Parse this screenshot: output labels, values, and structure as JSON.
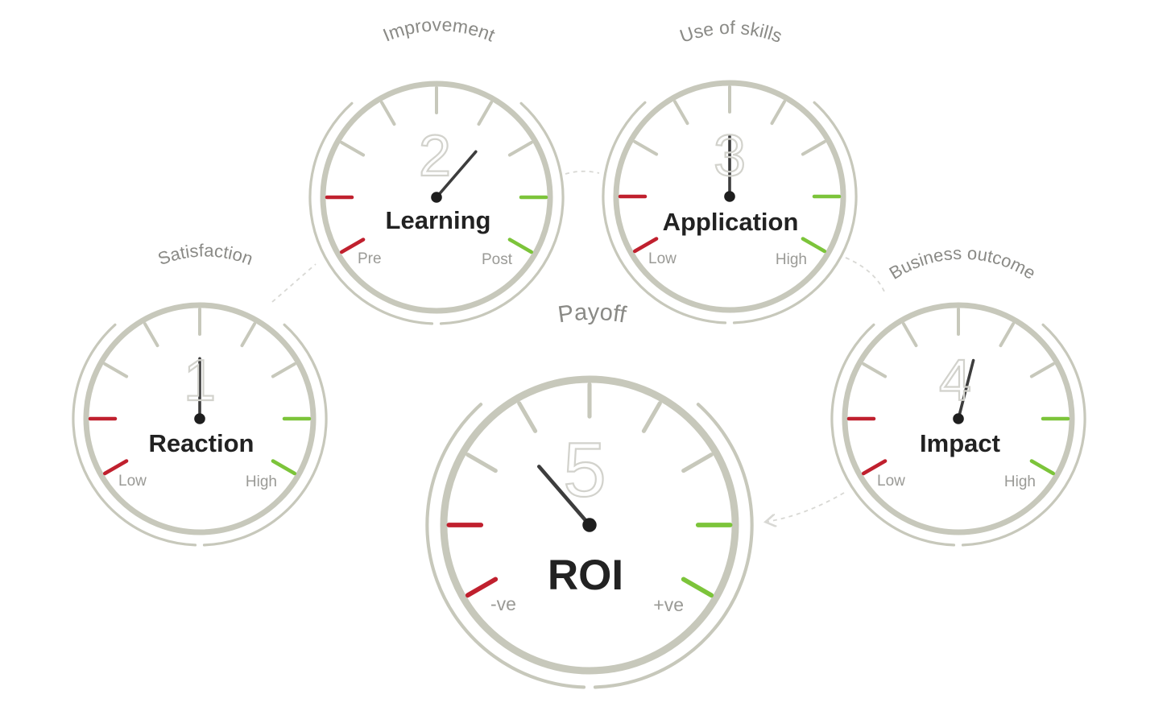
{
  "colors": {
    "ring": "#c7c8bb",
    "tick": "#c7c8bb",
    "low_tick": "#c0202e",
    "high_tick": "#7cc43a",
    "needle": "#3d3d3d",
    "hub": "#1e1e1e",
    "connector": "#d8d8d4",
    "level_glyph": "#d2d2cc"
  },
  "gauges": [
    {
      "level": "1",
      "name": "Reaction",
      "arc_label": "Satisfaction",
      "low_label": "Low",
      "high_label": "High",
      "reading": 0.5
    },
    {
      "level": "2",
      "name": "Learning",
      "arc_label": "Improvement",
      "low_label": "Pre",
      "high_label": "Post",
      "reading": 0.67
    },
    {
      "level": "3",
      "name": "Application",
      "arc_label": "Use of skills",
      "low_label": "Low",
      "high_label": "High",
      "reading": 0.5
    },
    {
      "level": "4",
      "name": "Impact",
      "arc_label": "Business outcome",
      "low_label": "Low",
      "high_label": "High",
      "reading": 0.56
    },
    {
      "level": "5",
      "name": "ROI",
      "arc_label": "Payoff",
      "low_label": "-ve",
      "high_label": "+ve",
      "reading": 0.33
    }
  ]
}
